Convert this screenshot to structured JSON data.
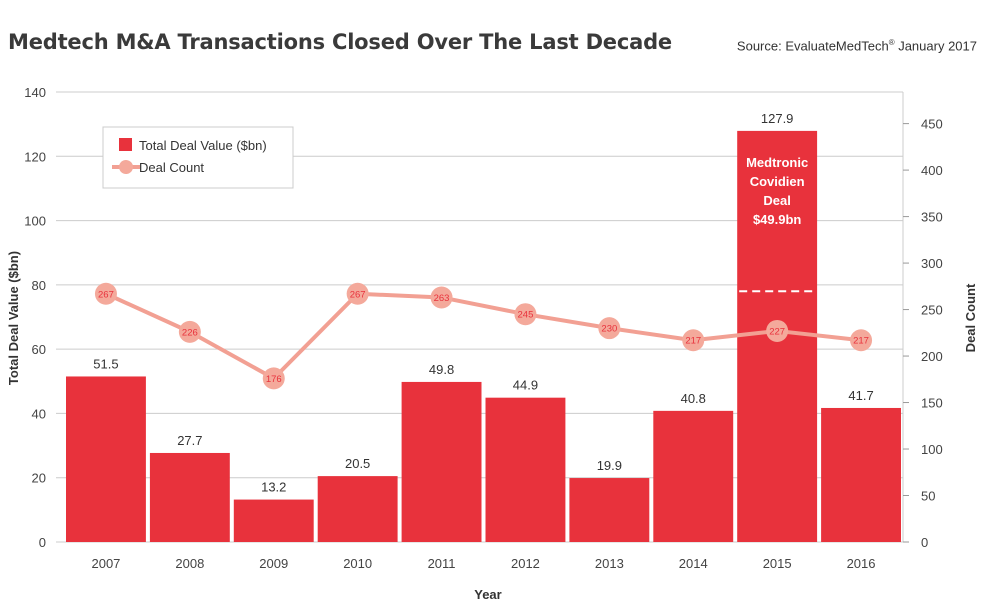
{
  "title": "Medtech M&A Transactions Closed Over The Last Decade",
  "source": {
    "prefix": "Source: EvaluateMedTech",
    "mark": "®",
    "suffix": " January 2017"
  },
  "colors": {
    "bar": "#e8323c",
    "line": "#f2a093",
    "marker": "#f4a99b",
    "marker_text": "#e8323c",
    "grid": "#cccccc"
  },
  "chart_data": {
    "type": "bar",
    "categories": [
      "2007",
      "2008",
      "2009",
      "2010",
      "2011",
      "2012",
      "2013",
      "2014",
      "2015",
      "2016"
    ],
    "series": [
      {
        "name": "Total Deal Value ($bn)",
        "type": "bar",
        "axis": "left",
        "values": [
          51.5,
          27.7,
          13.2,
          20.5,
          49.8,
          44.9,
          19.9,
          40.8,
          127.9,
          41.7
        ]
      },
      {
        "name": "Deal Count",
        "type": "line",
        "axis": "right",
        "values": [
          267,
          226,
          176,
          267,
          263,
          245,
          230,
          217,
          227,
          217
        ]
      }
    ],
    "xlabel": "Year",
    "ylabel": "Total Deal Value ($bn)",
    "y2label": "Deal Count",
    "ylim": [
      0,
      140
    ],
    "y2lim": [
      0,
      484
    ],
    "yticks": [
      0,
      20,
      40,
      60,
      80,
      100,
      120,
      140
    ],
    "y2ticks": [
      0,
      50,
      100,
      150,
      200,
      250,
      300,
      350,
      400,
      450
    ],
    "grid": true,
    "legend_position": "top-left",
    "annotation": {
      "category": "2015",
      "lines": [
        "Medtronic",
        "Covidien",
        "Deal",
        "$49.9bn"
      ],
      "portion_value": 49.9
    }
  }
}
